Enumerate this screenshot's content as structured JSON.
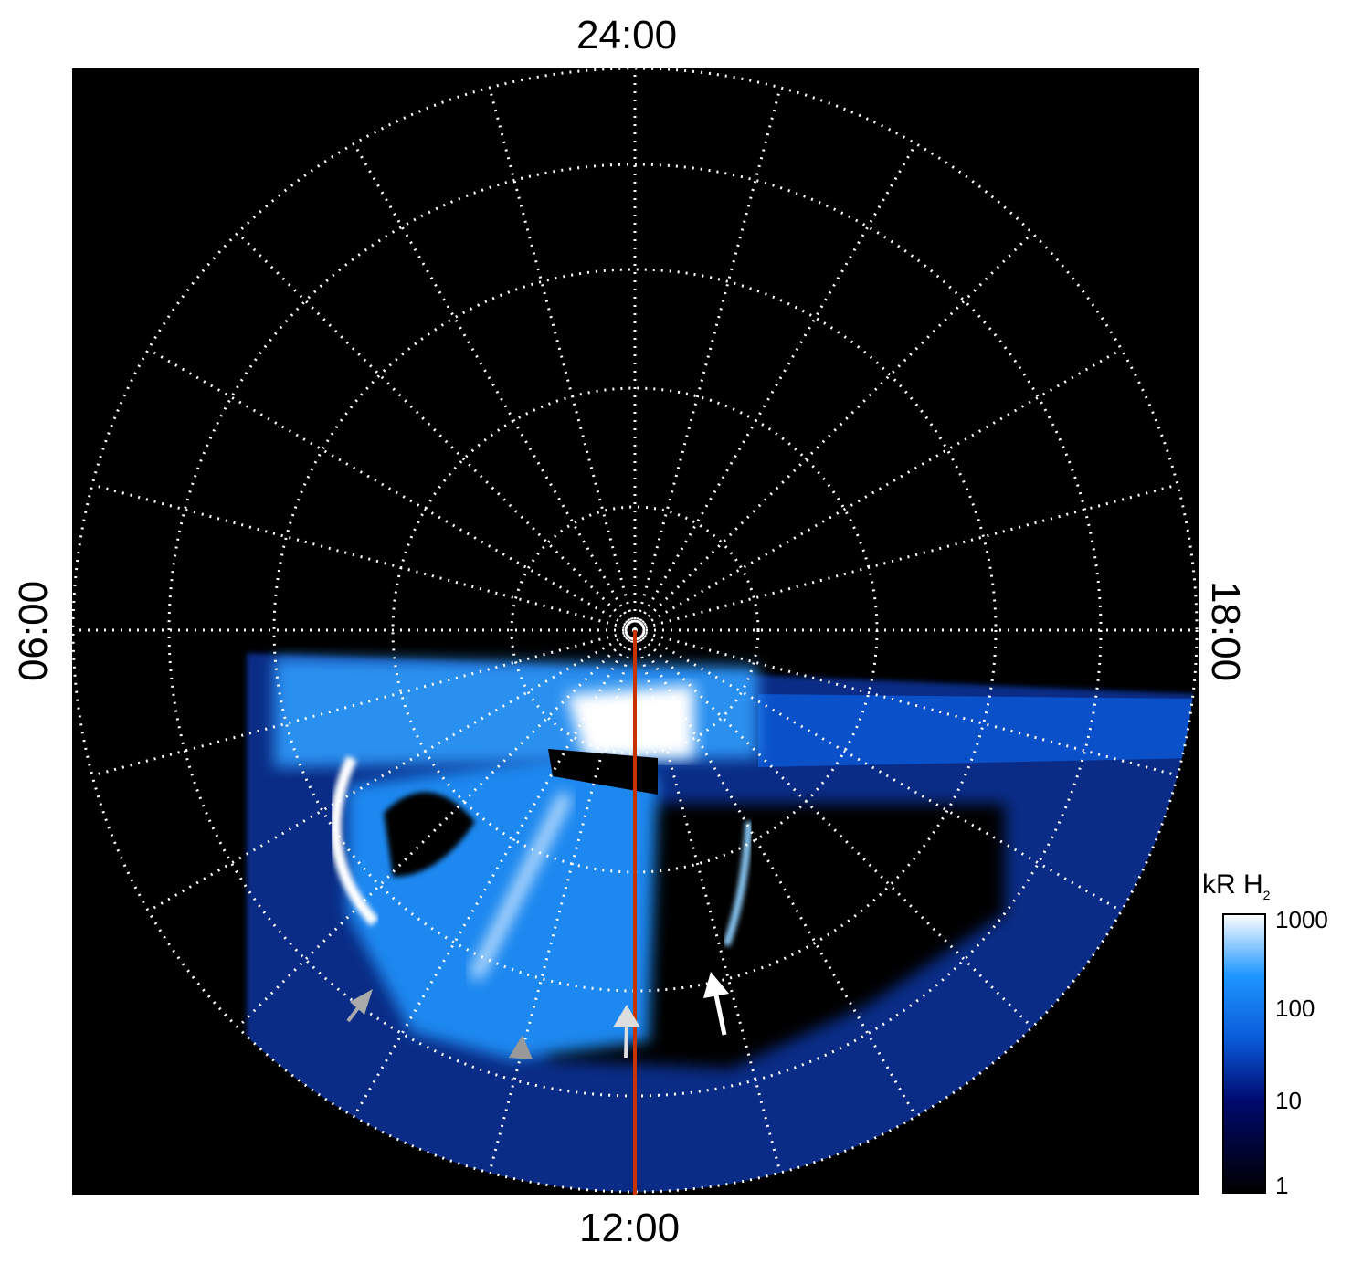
{
  "chart_data": {
    "type": "heatmap",
    "projection": "polar",
    "local_time_labels": {
      "top": "24:00",
      "bottom": "12:00",
      "left": "06:00",
      "right": "18:00"
    },
    "grid": true,
    "colorbar": {
      "label": "kR H",
      "label_subscript": "2",
      "scale": "log",
      "range": [
        1,
        1000
      ],
      "ticks": [
        "1000",
        "100",
        "10",
        "1"
      ],
      "colors": [
        "#000000",
        "#000a6e",
        "#0a5ad8",
        "#1e96ff",
        "#ffffff"
      ]
    },
    "colors": {
      "background": "#000000",
      "grid": "#ffffff",
      "meridian_line": "#c83200",
      "white_arrow": "#ffffff",
      "grey_arrow": "#a0a0a0"
    }
  }
}
